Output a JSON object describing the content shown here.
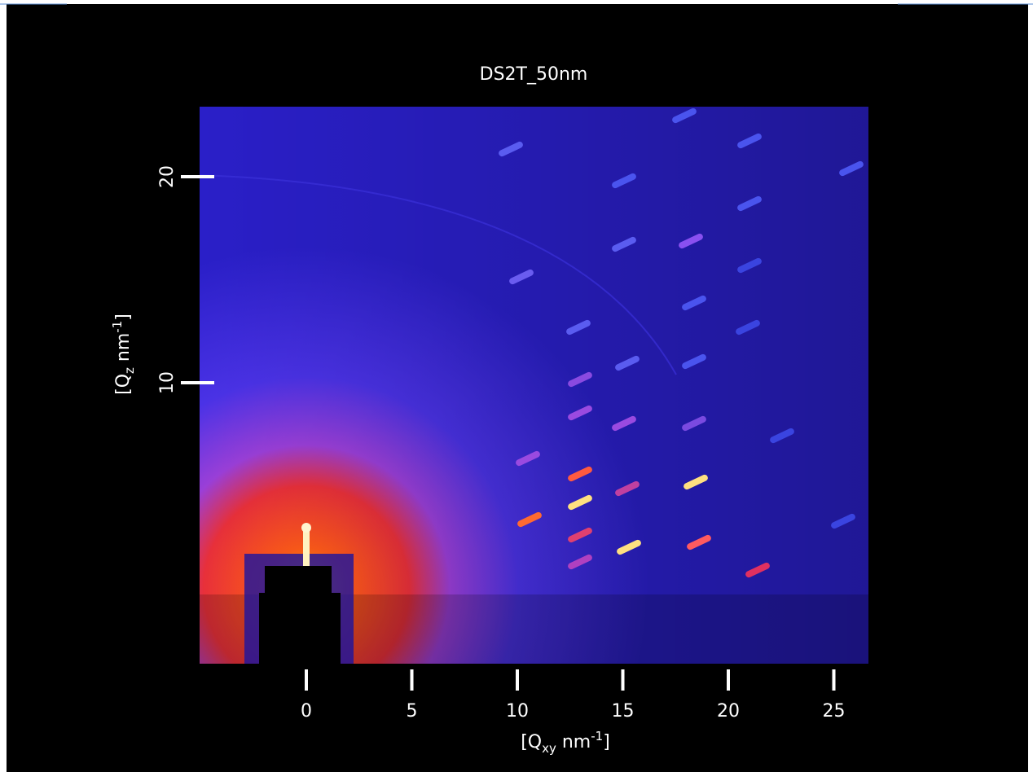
{
  "figure": {
    "title": "DS2T_50nm",
    "x_label": {
      "main": "[Q",
      "sub": "xy",
      "unit": " nm",
      "sup": "-1",
      "end": "]"
    },
    "y_label": {
      "main": "[Q",
      "sub": "z",
      "unit": " nm",
      "sup": "-1",
      "end": "]"
    },
    "xticks": [
      0,
      5,
      10,
      15,
      20,
      25
    ],
    "yticks": [
      10,
      20
    ]
  }
}
